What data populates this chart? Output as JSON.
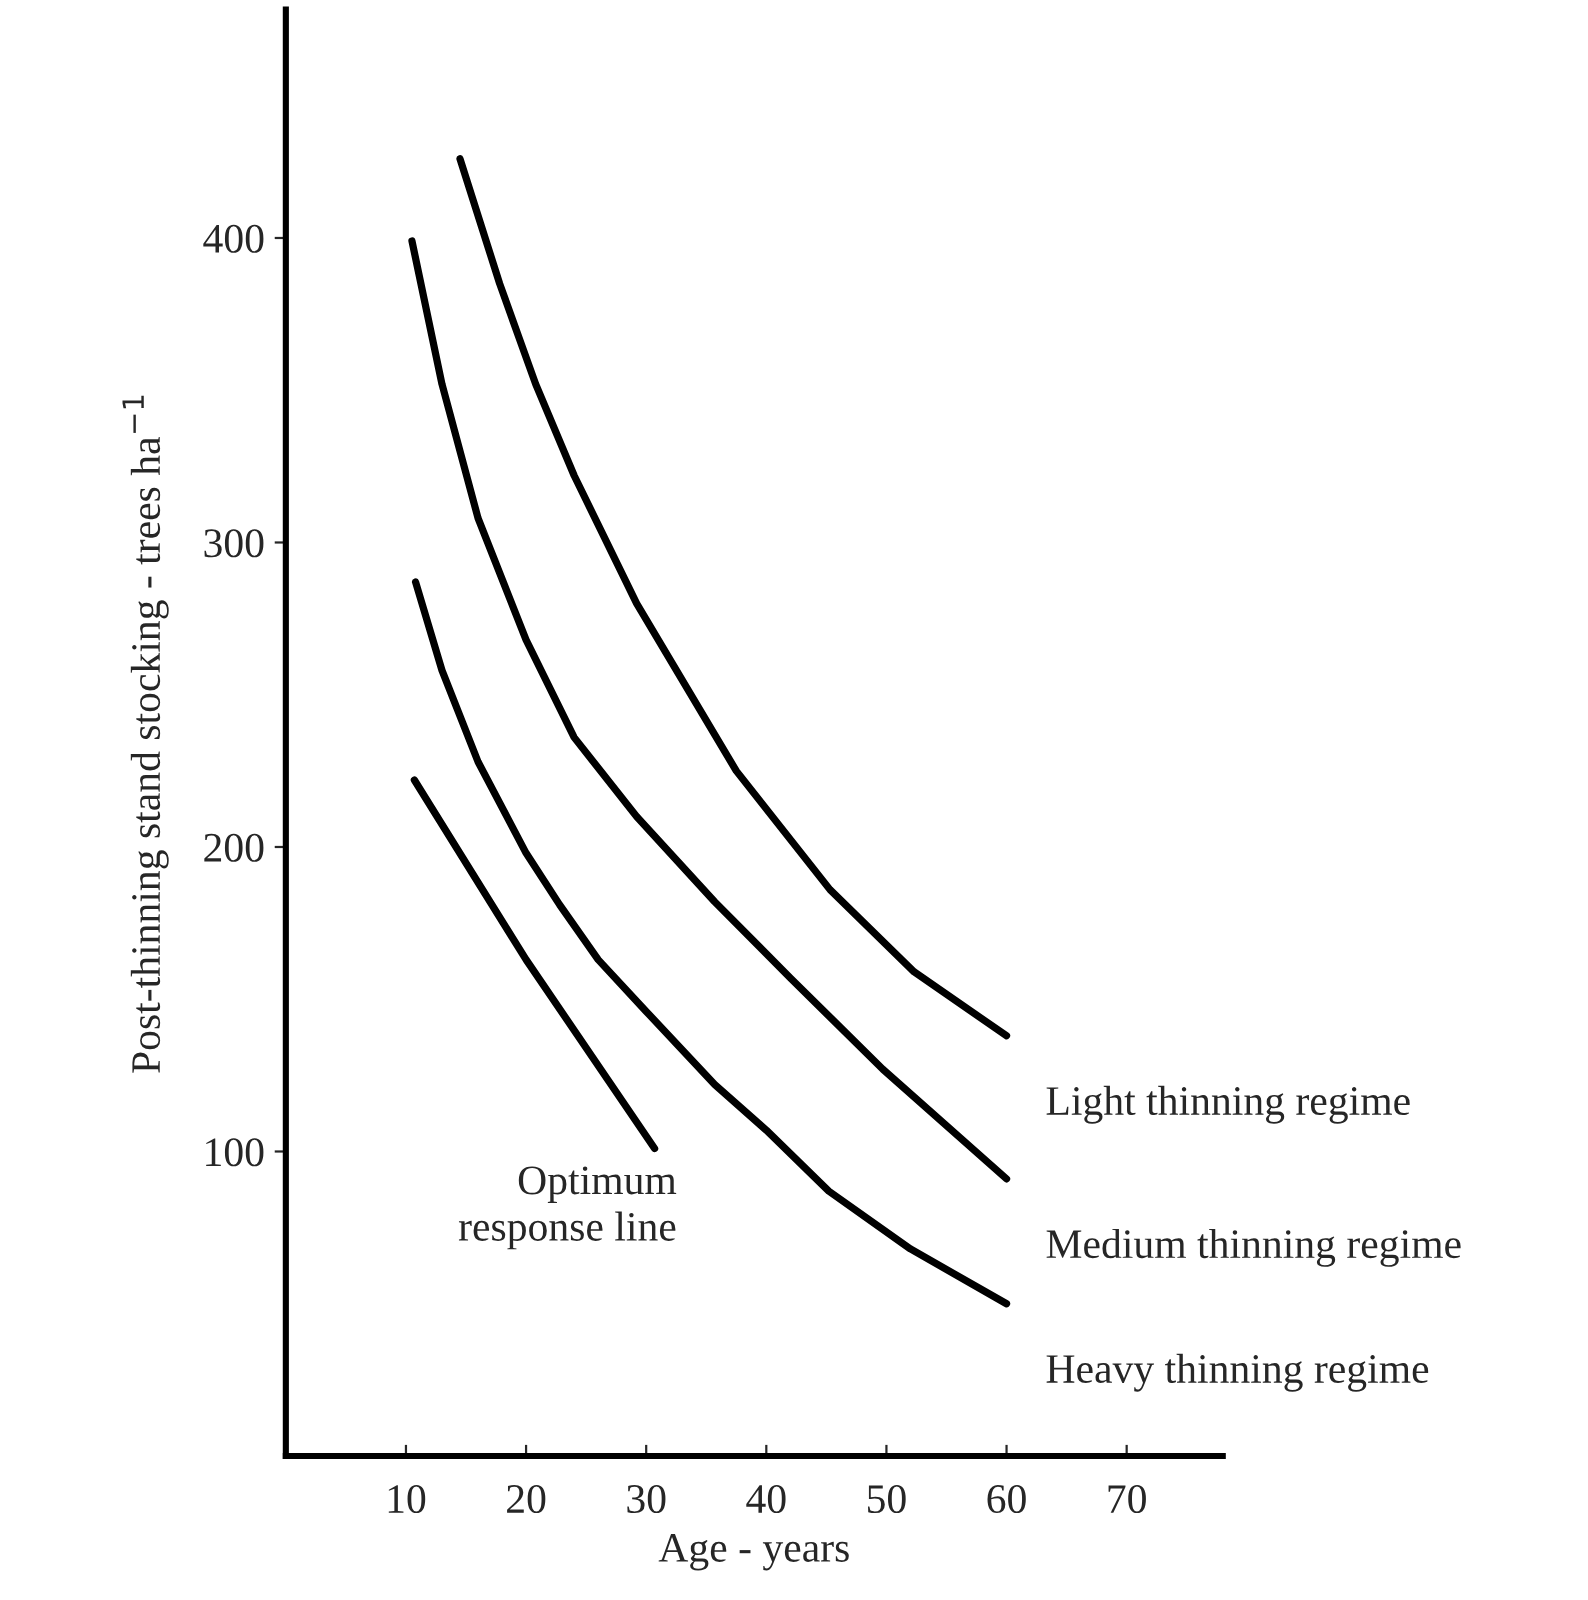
{
  "chart_data": {
    "type": "line",
    "xlabel": "Age - years",
    "ylabel": "Post-thinning stand stocking - trees ha$^{−1}$",
    "xlim": [
      0,
      78
    ],
    "ylim": [
      0,
      475
    ],
    "xticks": [
      10,
      20,
      30,
      40,
      50,
      60,
      70
    ],
    "yticks": [
      100,
      200,
      300,
      400
    ],
    "grid": false,
    "legend": false,
    "marker": "none",
    "line_style": "solid",
    "series": [
      {
        "name": "Light thinning regime",
        "color": "#000000",
        "x": [
          14.5,
          17.8,
          20.8,
          24,
          29.2,
          37.5,
          45.3,
          52.3,
          60
        ],
        "values": [
          426,
          385,
          352,
          322,
          280,
          225,
          186,
          159,
          138
        ]
      },
      {
        "name": "Medium thinning regime",
        "color": "#000000",
        "x": [
          10.5,
          13,
          16,
          20,
          24,
          29.2,
          35.7,
          42,
          49.7,
          60
        ],
        "values": [
          399,
          352,
          308,
          268,
          236,
          210,
          182,
          157,
          127,
          91
        ]
      },
      {
        "name": "Heavy thinning regime",
        "color": "#000000",
        "x": [
          10.8,
          13,
          16,
          20,
          22.8,
          26,
          30,
          35.7,
          40,
          45.2,
          52,
          60
        ],
        "values": [
          287,
          258,
          228,
          198,
          181,
          163,
          146,
          122,
          107,
          87,
          68,
          50
        ]
      },
      {
        "name": "Optimum\nresponse line",
        "color": "#000000",
        "x": [
          10.7,
          20,
          30.7
        ],
        "values": [
          222,
          163,
          101
        ]
      }
    ]
  }
}
